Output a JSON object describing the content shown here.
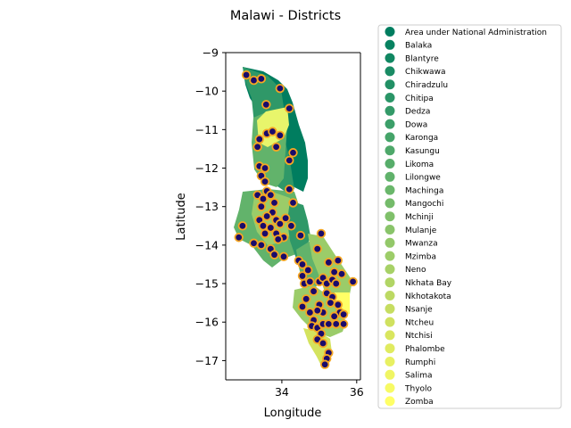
{
  "chart_data": {
    "type": "map",
    "title": "Malawi - Districts",
    "xlabel": "Longitude",
    "ylabel": "Latitude",
    "xlim": [
      32.5,
      36.1
    ],
    "ylim": [
      -17.5,
      -9.0
    ],
    "xticks": [
      34,
      36
    ],
    "yticks": [
      -9,
      -10,
      -11,
      -12,
      -13,
      -14,
      -15,
      -16,
      -17
    ],
    "legend_position": "outside-right",
    "colormap": [
      "#007d5f",
      "#2f9868",
      "#62b36b",
      "#9bcc69",
      "#d4e35e",
      "#ffff66"
    ],
    "marker_fill": "#1a0b6b",
    "marker_edge": "#f5a623",
    "legend": [
      "Area under National Administration",
      "Balaka",
      "Blantyre",
      "Chikwawa",
      "Chiradzulu",
      "Chitipa",
      "Dedza",
      "Dowa",
      "Karonga",
      "Kasungu",
      "Likoma",
      "Lilongwe",
      "Machinga",
      "Mangochi",
      "Mchinji",
      "Mulanje",
      "Mwanza",
      "Mzimba",
      "Neno",
      "Nkhata Bay",
      "Nkhotakota",
      "Nsanje",
      "Ntcheu",
      "Ntchisi",
      "Phalombe",
      "Rumphi",
      "Salima",
      "Thyolo",
      "Zomba"
    ],
    "points": [
      [
        33.05,
        -9.58
      ],
      [
        33.25,
        -9.72
      ],
      [
        33.45,
        -9.68
      ],
      [
        33.95,
        -9.93
      ],
      [
        33.58,
        -10.35
      ],
      [
        34.2,
        -10.45
      ],
      [
        33.6,
        -11.1
      ],
      [
        33.75,
        -11.05
      ],
      [
        33.4,
        -11.25
      ],
      [
        33.95,
        -11.15
      ],
      [
        33.85,
        -11.45
      ],
      [
        33.35,
        -11.45
      ],
      [
        34.3,
        -11.6
      ],
      [
        34.2,
        -11.8
      ],
      [
        33.4,
        -11.95
      ],
      [
        33.55,
        -12.0
      ],
      [
        33.45,
        -12.2
      ],
      [
        33.55,
        -12.35
      ],
      [
        33.6,
        -12.6
      ],
      [
        33.7,
        -12.7
      ],
      [
        34.2,
        -12.55
      ],
      [
        33.35,
        -12.7
      ],
      [
        33.5,
        -12.8
      ],
      [
        33.8,
        -12.9
      ],
      [
        34.3,
        -12.9
      ],
      [
        33.45,
        -13.0
      ],
      [
        33.75,
        -13.15
      ],
      [
        33.6,
        -13.25
      ],
      [
        33.85,
        -13.35
      ],
      [
        33.95,
        -13.45
      ],
      [
        34.1,
        -13.3
      ],
      [
        33.4,
        -13.35
      ],
      [
        33.5,
        -13.5
      ],
      [
        33.7,
        -13.55
      ],
      [
        34.25,
        -13.5
      ],
      [
        33.85,
        -13.7
      ],
      [
        33.55,
        -13.7
      ],
      [
        34.05,
        -13.8
      ],
      [
        33.9,
        -13.85
      ],
      [
        34.5,
        -13.75
      ],
      [
        33.45,
        -14.0
      ],
      [
        33.25,
        -13.95
      ],
      [
        32.85,
        -13.8
      ],
      [
        32.95,
        -13.5
      ],
      [
        33.7,
        -14.1
      ],
      [
        33.8,
        -14.25
      ],
      [
        34.05,
        -14.3
      ],
      [
        34.45,
        -14.4
      ],
      [
        34.55,
        -14.5
      ],
      [
        34.95,
        -14.1
      ],
      [
        35.05,
        -13.7
      ],
      [
        34.7,
        -14.65
      ],
      [
        34.55,
        -14.8
      ],
      [
        34.6,
        -15.0
      ],
      [
        34.75,
        -14.95
      ],
      [
        34.85,
        -15.2
      ],
      [
        35.0,
        -14.95
      ],
      [
        35.1,
        -14.85
      ],
      [
        35.2,
        -15.0
      ],
      [
        35.35,
        -14.9
      ],
      [
        35.25,
        -14.45
      ],
      [
        35.5,
        -14.4
      ],
      [
        35.4,
        -14.7
      ],
      [
        35.6,
        -14.75
      ],
      [
        35.9,
        -14.95
      ],
      [
        35.45,
        -15.0
      ],
      [
        35.2,
        -15.25
      ],
      [
        35.35,
        -15.35
      ],
      [
        34.65,
        -15.4
      ],
      [
        35.0,
        -15.55
      ],
      [
        35.3,
        -15.5
      ],
      [
        35.5,
        -15.55
      ],
      [
        35.55,
        -15.75
      ],
      [
        35.65,
        -15.8
      ],
      [
        35.4,
        -15.85
      ],
      [
        35.1,
        -15.75
      ],
      [
        34.95,
        -15.7
      ],
      [
        34.85,
        -15.95
      ],
      [
        34.8,
        -16.1
      ],
      [
        34.95,
        -16.15
      ],
      [
        35.1,
        -16.05
      ],
      [
        35.25,
        -16.05
      ],
      [
        35.45,
        -16.05
      ],
      [
        35.65,
        -16.05
      ],
      [
        35.05,
        -16.3
      ],
      [
        34.95,
        -16.45
      ],
      [
        35.1,
        -16.55
      ],
      [
        35.25,
        -16.8
      ],
      [
        35.2,
        -16.95
      ],
      [
        35.15,
        -17.1
      ],
      [
        34.55,
        -15.6
      ],
      [
        34.75,
        -15.75
      ]
    ]
  }
}
